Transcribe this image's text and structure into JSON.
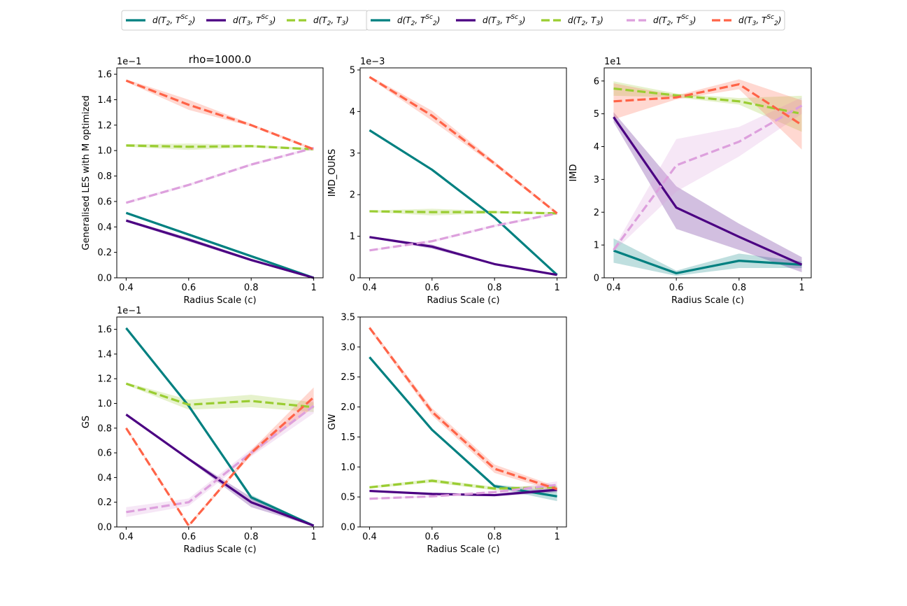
{
  "colors": {
    "teal": "#008080",
    "purple": "#4b0082",
    "green": "#9acd32",
    "pink": "#dda0dd",
    "orange": "#ff6347"
  },
  "legends": [
    {
      "entries": [
        {
          "label": "d(T2, T2^Sc)",
          "base": "d(T",
          "s1": "2",
          "sep": ", T",
          "s2": "2",
          "sup": "Sc",
          "close": ")",
          "color": "teal",
          "dash": false
        },
        {
          "label": "d(T3, T3^Sc)",
          "base": "d(T",
          "s1": "3",
          "sep": ", T",
          "s2": "3",
          "sup": "Sc",
          "close": ")",
          "color": "purple",
          "dash": false
        },
        {
          "label": "d(T2, T3)",
          "base": "d(T",
          "s1": "2",
          "sep": ", T",
          "s2": "3",
          "sup": "",
          "close": ")",
          "color": "green",
          "dash": true
        }
      ]
    },
    {
      "entries": [
        {
          "label": "d(T2, T2^Sc)",
          "base": "d(T",
          "s1": "2",
          "sep": ", T",
          "s2": "2",
          "sup": "Sc",
          "close": ")",
          "color": "teal",
          "dash": false
        },
        {
          "label": "d(T3, T3^Sc)",
          "base": "d(T",
          "s1": "3",
          "sep": ", T",
          "s2": "3",
          "sup": "Sc",
          "close": ")",
          "color": "purple",
          "dash": false
        },
        {
          "label": "d(T2, T3)",
          "base": "d(T",
          "s1": "2",
          "sep": ", T",
          "s2": "3",
          "sup": "",
          "close": ")",
          "color": "green",
          "dash": true
        },
        {
          "label": "d(T2, T3^Sc)",
          "base": "d(T",
          "s1": "2",
          "sep": ", T",
          "s2": "3",
          "sup": "Sc",
          "close": ")",
          "color": "pink",
          "dash": true
        },
        {
          "label": "d(T3, T2^Sc)",
          "base": "d(T",
          "s1": "3",
          "sep": ", T",
          "s2": "2",
          "sup": "Sc",
          "close": ")",
          "color": "orange",
          "dash": true
        }
      ]
    }
  ],
  "chart_data": [
    {
      "type": "line",
      "title": "rho=1000.0",
      "xlabel": "Radius Scale (c)",
      "ylabel": "Generalised LES with M optimized",
      "offset": "1e−1",
      "x": [
        0.4,
        0.6,
        0.8,
        1
      ],
      "xticks": [
        "0.4",
        "0.6",
        "0.8",
        "1"
      ],
      "ylim": [
        0,
        1.65
      ],
      "yticks": [
        0,
        0.2,
        0.4,
        0.6,
        0.8,
        1.0,
        1.2,
        1.4,
        1.6
      ],
      "ydec": 1,
      "series": [
        {
          "key": "teal",
          "values": [
            0.51,
            0.34,
            0.17,
            0.0
          ],
          "band": [
            0.01,
            0.01,
            0.01,
            0.005
          ]
        },
        {
          "key": "purple",
          "values": [
            0.45,
            0.3,
            0.14,
            0.0
          ],
          "band": [
            0.01,
            0.015,
            0.01,
            0.005
          ]
        },
        {
          "key": "green",
          "values": [
            1.04,
            1.03,
            1.035,
            1.01
          ],
          "band": [
            0.01,
            0.025,
            0.01,
            0.01
          ]
        },
        {
          "key": "pink",
          "values": [
            0.59,
            0.73,
            0.89,
            1.02
          ],
          "band": [
            0.01,
            0.01,
            0.01,
            0.01
          ]
        },
        {
          "key": "orange",
          "values": [
            1.55,
            1.36,
            1.2,
            1.01
          ],
          "band": [
            0.01,
            0.04,
            0.01,
            0.01
          ]
        }
      ]
    },
    {
      "type": "line",
      "title": "",
      "xlabel": "Radius Scale (c)",
      "ylabel": "IMD_OURS",
      "offset": "1e−3",
      "x": [
        0.4,
        0.6,
        0.8,
        1
      ],
      "xticks": [
        "0.4",
        "0.6",
        "0.8",
        "1"
      ],
      "ylim": [
        0,
        5.05
      ],
      "yticks": [
        0,
        1,
        2,
        3,
        4,
        5
      ],
      "ydec": 0,
      "series": [
        {
          "key": "teal",
          "values": [
            3.55,
            2.6,
            1.45,
            0.07
          ],
          "band": [
            0.02,
            0.03,
            0.03,
            0.02
          ]
        },
        {
          "key": "purple",
          "values": [
            0.98,
            0.75,
            0.33,
            0.07
          ],
          "band": [
            0.02,
            0.05,
            0.02,
            0.02
          ]
        },
        {
          "key": "green",
          "values": [
            1.6,
            1.58,
            1.58,
            1.55
          ],
          "band": [
            0.02,
            0.08,
            0.03,
            0.03
          ]
        },
        {
          "key": "pink",
          "values": [
            0.66,
            0.88,
            1.25,
            1.55
          ],
          "band": [
            0.02,
            0.03,
            0.03,
            0.03
          ]
        },
        {
          "key": "orange",
          "values": [
            4.83,
            3.9,
            2.75,
            1.55
          ],
          "band": [
            0.03,
            0.12,
            0.05,
            0.03
          ]
        }
      ]
    },
    {
      "type": "line",
      "title": "",
      "xlabel": "Radius Scale (c)",
      "ylabel": "IMD",
      "offset": "1e1",
      "x": [
        0.4,
        0.6,
        0.8,
        1
      ],
      "xticks": [
        "0.4",
        "0.6",
        "0.8",
        "1"
      ],
      "ylim": [
        0,
        6.4
      ],
      "yticks": [
        0,
        1,
        2,
        3,
        4,
        5,
        6
      ],
      "ydec": 0,
      "series": [
        {
          "key": "teal",
          "values": [
            0.83,
            0.14,
            0.52,
            0.4
          ],
          "band": [
            0.37,
            0.08,
            0.22,
            0.1
          ]
        },
        {
          "key": "purple",
          "values": [
            4.9,
            2.14,
            1.25,
            0.4
          ],
          "band": [
            0.15,
            0.65,
            0.4,
            0.23
          ]
        },
        {
          "key": "green",
          "values": [
            5.77,
            5.56,
            5.38,
            5.0
          ],
          "band": [
            0.22,
            0.06,
            0.1,
            0.55
          ]
        },
        {
          "key": "pink",
          "values": [
            0.85,
            3.43,
            4.15,
            5.25
          ],
          "band": [
            0.05,
            0.8,
            0.45,
            0.25
          ]
        },
        {
          "key": "orange",
          "values": [
            5.38,
            5.5,
            5.9,
            4.66
          ],
          "band": [
            0.55,
            0.06,
            0.15,
            0.75
          ]
        }
      ]
    },
    {
      "type": "line",
      "title": "",
      "xlabel": "Radius Scale (c)",
      "ylabel": "GS",
      "offset": "1e−1",
      "x": [
        0.4,
        0.6,
        0.8,
        1
      ],
      "xticks": [
        "0.4",
        "0.6",
        "0.8",
        "1"
      ],
      "ylim": [
        0,
        1.7
      ],
      "yticks": [
        0,
        0.2,
        0.4,
        0.6,
        0.8,
        1.0,
        1.2,
        1.4,
        1.6
      ],
      "ydec": 1,
      "series": [
        {
          "key": "teal",
          "values": [
            1.61,
            0.98,
            0.24,
            0.01
          ],
          "band": [
            0.01,
            0.01,
            0.02,
            0.005
          ]
        },
        {
          "key": "purple",
          "values": [
            0.91,
            0.55,
            0.2,
            0.01
          ],
          "band": [
            0.01,
            0.01,
            0.04,
            0.005
          ]
        },
        {
          "key": "green",
          "values": [
            1.16,
            0.99,
            1.02,
            0.97
          ],
          "band": [
            0.01,
            0.04,
            0.05,
            0.04
          ]
        },
        {
          "key": "pink",
          "values": [
            0.12,
            0.2,
            0.6,
            0.98
          ],
          "band": [
            0.04,
            0.03,
            0.03,
            0.06
          ]
        },
        {
          "key": "orange",
          "values": [
            0.8,
            0.01,
            0.6,
            1.05
          ],
          "band": [
            0.01,
            0.01,
            0.02,
            0.08
          ]
        }
      ]
    },
    {
      "type": "line",
      "title": "",
      "xlabel": "Radius Scale (c)",
      "ylabel": "GW",
      "offset": "",
      "x": [
        0.4,
        0.6,
        0.8,
        1
      ],
      "xticks": [
        "0.4",
        "0.6",
        "0.8",
        "1"
      ],
      "ylim": [
        0,
        3.5
      ],
      "yticks": [
        0,
        0.5,
        1.0,
        1.5,
        2.0,
        2.5,
        3.0,
        3.5
      ],
      "ydec": 1,
      "series": [
        {
          "key": "teal",
          "values": [
            2.83,
            1.62,
            0.68,
            0.51
          ],
          "band": [
            0.01,
            0.02,
            0.03,
            0.08
          ]
        },
        {
          "key": "purple",
          "values": [
            0.6,
            0.55,
            0.53,
            0.62
          ],
          "band": [
            0.01,
            0.02,
            0.02,
            0.04
          ]
        },
        {
          "key": "green",
          "values": [
            0.66,
            0.77,
            0.64,
            0.66
          ],
          "band": [
            0.02,
            0.03,
            0.03,
            0.03
          ]
        },
        {
          "key": "pink",
          "values": [
            0.47,
            0.51,
            0.58,
            0.7
          ],
          "band": [
            0.01,
            0.02,
            0.02,
            0.06
          ]
        },
        {
          "key": "orange",
          "values": [
            3.32,
            1.92,
            0.97,
            0.63
          ],
          "band": [
            0.03,
            0.06,
            0.07,
            0.04
          ]
        }
      ]
    }
  ]
}
